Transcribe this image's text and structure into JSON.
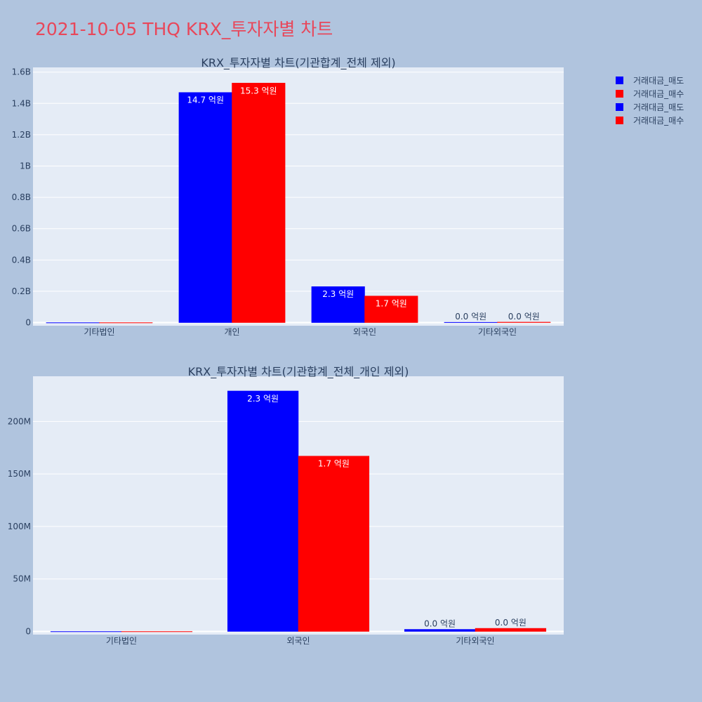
{
  "title": "2021-10-05 THQ KRX_투자자별 차트",
  "colors": {
    "sell": "#0000ff",
    "buy": "#ff0000",
    "plot_bg": "#e5ecf6",
    "page_bg": "#b0c4de",
    "title": "#e8475a"
  },
  "legend": [
    {
      "label": "거래대금_매도",
      "color": "#0000ff"
    },
    {
      "label": "거래대금_매수",
      "color": "#ff0000"
    },
    {
      "label": "거래대금_매도",
      "color": "#0000ff"
    },
    {
      "label": "거래대금_매수",
      "color": "#ff0000"
    }
  ],
  "chart_data": [
    {
      "type": "bar",
      "title": "KRX_투자자별 차트(기관합계_전체 제외)",
      "categories": [
        "기타법인",
        "개인",
        "외국인",
        "기타외국인"
      ],
      "series": [
        {
          "name": "거래대금_매도",
          "values": [
            0,
            1470000000,
            230000000,
            2000000
          ],
          "labels": [
            "",
            "14.7 억원",
            "2.3 억원",
            "0.0 억원"
          ]
        },
        {
          "name": "거래대금_매수",
          "values": [
            0,
            1530000000,
            170000000,
            3000000
          ],
          "labels": [
            "",
            "15.3 억원",
            "1.7 억원",
            "0.0 억원"
          ]
        }
      ],
      "yticks": [
        0,
        200000000,
        400000000,
        600000000,
        800000000,
        1000000000,
        1200000000,
        1400000000,
        1600000000
      ],
      "ytick_labels": [
        "0",
        "0.2B",
        "0.4B",
        "0.6B",
        "0.8B",
        "1B",
        "1.2B",
        "1.4B",
        "1.6B"
      ],
      "ylim": [
        -20000000,
        1630000000
      ],
      "grid": true
    },
    {
      "type": "bar",
      "title": "KRX_투자자별 차트(기관합계_전체_개인 제외)",
      "categories": [
        "기타법인",
        "외국인",
        "기타외국인"
      ],
      "series": [
        {
          "name": "거래대금_매도",
          "values": [
            0,
            229000000,
            2000000
          ],
          "labels": [
            "",
            "2.3 억원",
            "0.0 억원"
          ]
        },
        {
          "name": "거래대금_매수",
          "values": [
            0,
            167000000,
            3000000
          ],
          "labels": [
            "",
            "1.7 억원",
            "0.0 억원"
          ]
        }
      ],
      "yticks": [
        0,
        50000000,
        100000000,
        150000000,
        200000000
      ],
      "ytick_labels": [
        "0",
        "50M",
        "100M",
        "150M",
        "200M"
      ],
      "ylim": [
        -3000000,
        243000000
      ],
      "grid": true
    }
  ]
}
